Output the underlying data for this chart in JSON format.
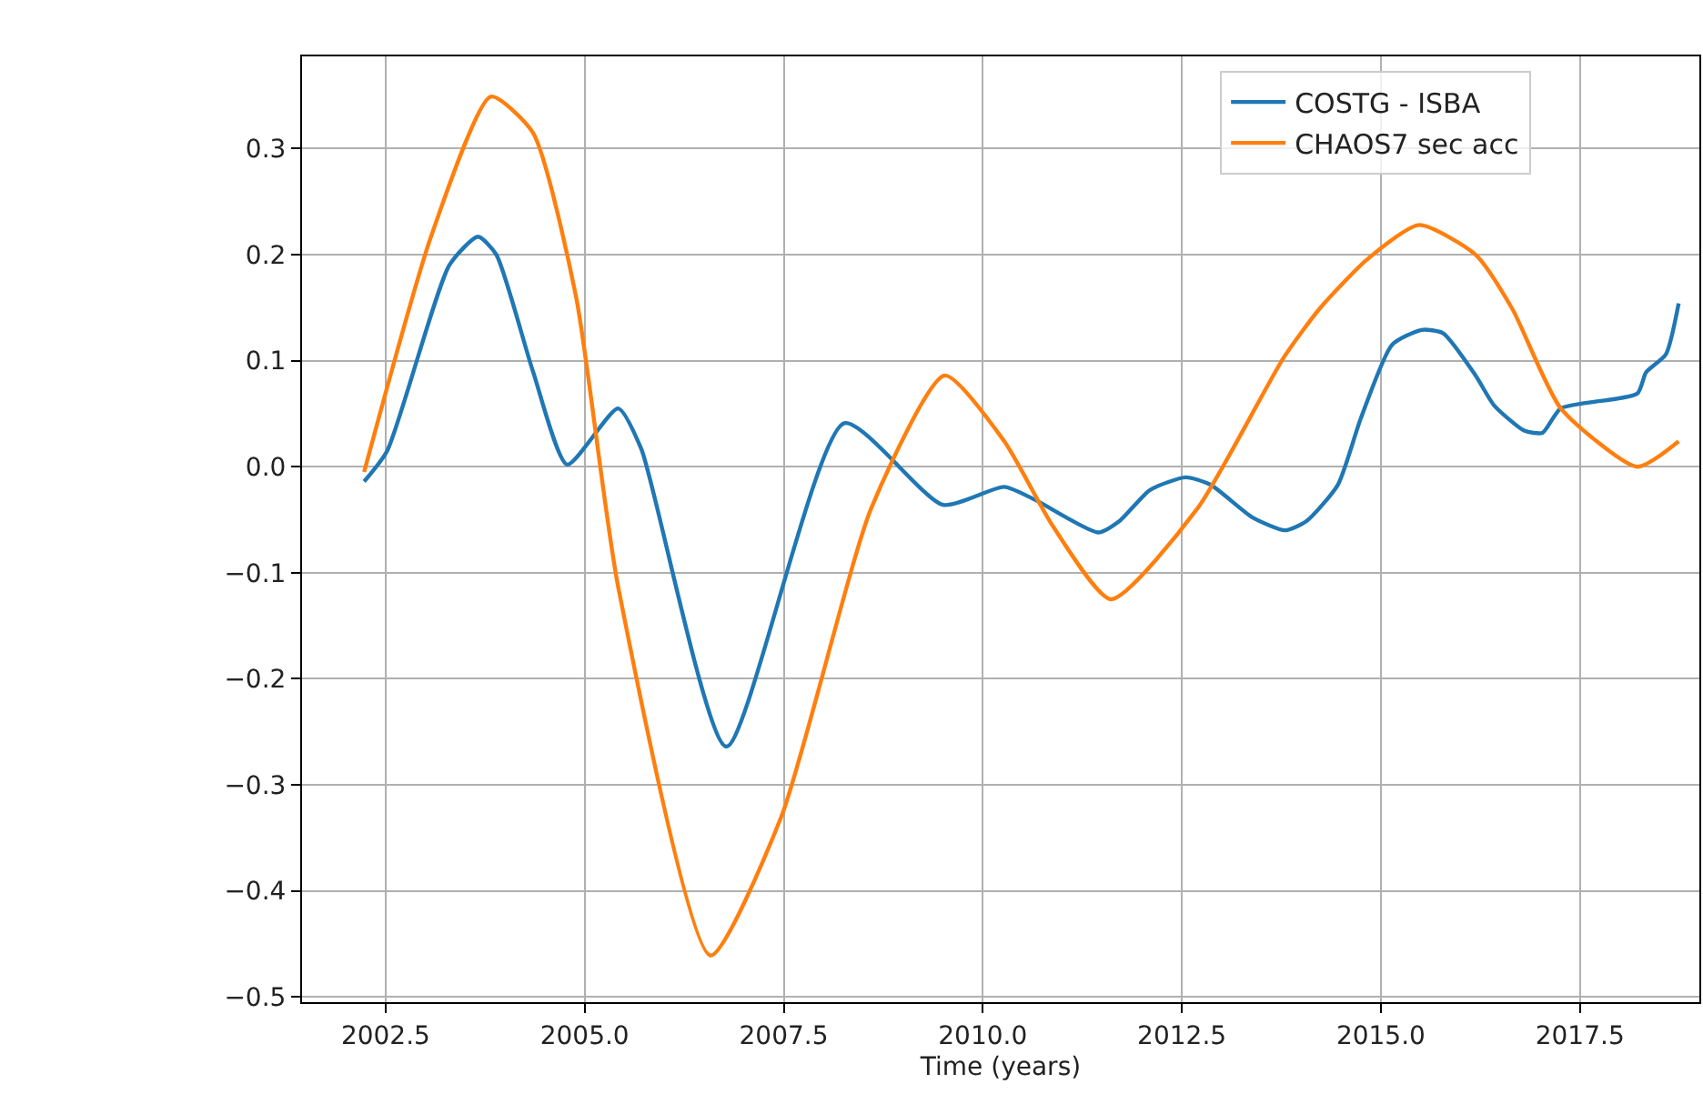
{
  "chart_data": {
    "type": "line",
    "xlabel": "Time (years)",
    "xlim": [
      2001.45,
      2019.0
    ],
    "xticks": [
      {
        "value": 2002.5,
        "label": "2002.5"
      },
      {
        "value": 2005,
        "label": "2005.0"
      },
      {
        "value": 2007.5,
        "label": "2007.5"
      },
      {
        "value": 2010,
        "label": "2010.0"
      },
      {
        "value": 2012.5,
        "label": "2012.5"
      },
      {
        "value": 2015,
        "label": "2015.0"
      },
      {
        "value": 2017.5,
        "label": "2017.5"
      }
    ],
    "ylim": [
      -0.505,
      0.387
    ],
    "yticks": [
      {
        "value": -0.5,
        "label": "−0.5"
      },
      {
        "value": -0.4,
        "label": "−0.4"
      },
      {
        "value": -0.3,
        "label": "−0.3"
      },
      {
        "value": -0.2,
        "label": "−0.2"
      },
      {
        "value": -0.1,
        "label": "−0.1"
      },
      {
        "value": 0,
        "label": "0.0"
      },
      {
        "value": 0.1,
        "label": "0.1"
      },
      {
        "value": 0.2,
        "label": "0.2"
      },
      {
        "value": 0.3,
        "label": "0.3"
      }
    ],
    "grid": true,
    "legend": "top right",
    "line_style": "solid",
    "marker": "none",
    "series": [
      {
        "name": "COSTG - ISBA",
        "color": "#1f77b4",
        "x": [
          2002.23,
          2002.52,
          2003.3,
          2003.66,
          2003.89,
          2004.35,
          2004.78,
          2005.42,
          2005.71,
          2006.78,
          2008.26,
          2009.5,
          2010.27,
          2010.65,
          2011.45,
          2011.72,
          2012.1,
          2012.55,
          2012.86,
          2013.39,
          2013.8,
          2014.07,
          2014.46,
          2014.75,
          2015.14,
          2015.51,
          2015.78,
          2016.19,
          2016.42,
          2016.8,
          2017.03,
          2017.26,
          2018.22,
          2018.33,
          2018.58,
          2018.74
        ],
        "values": [
          -0.014,
          0.015,
          0.19,
          0.217,
          0.2,
          0.09,
          0.002,
          0.055,
          0.017,
          -0.264,
          0.041,
          -0.036,
          -0.019,
          -0.031,
          -0.062,
          -0.051,
          -0.022,
          -0.01,
          -0.017,
          -0.048,
          -0.06,
          -0.051,
          -0.017,
          0.046,
          0.115,
          0.129,
          0.126,
          0.086,
          0.058,
          0.034,
          0.032,
          0.055,
          0.069,
          0.089,
          0.106,
          0.154
        ]
      },
      {
        "name": "CHAOS7 sec acc",
        "color": "#ff7f0e",
        "x": [
          2002.23,
          2003.07,
          2003.82,
          2004.35,
          2004.89,
          2005.42,
          2006.58,
          2007.47,
          2008.6,
          2009.52,
          2010.27,
          2010.88,
          2011.61,
          2012.7,
          2013.78,
          2014.23,
          2014.82,
          2015.48,
          2016.19,
          2016.65,
          2017.26,
          2018.22,
          2018.74
        ],
        "values": [
          -0.005,
          0.217,
          0.349,
          0.315,
          0.161,
          -0.113,
          -0.461,
          -0.33,
          -0.039,
          0.086,
          0.024,
          -0.056,
          -0.125,
          -0.039,
          0.103,
          0.149,
          0.195,
          0.228,
          0.2,
          0.149,
          0.055,
          0.0,
          0.024
        ]
      }
    ]
  }
}
